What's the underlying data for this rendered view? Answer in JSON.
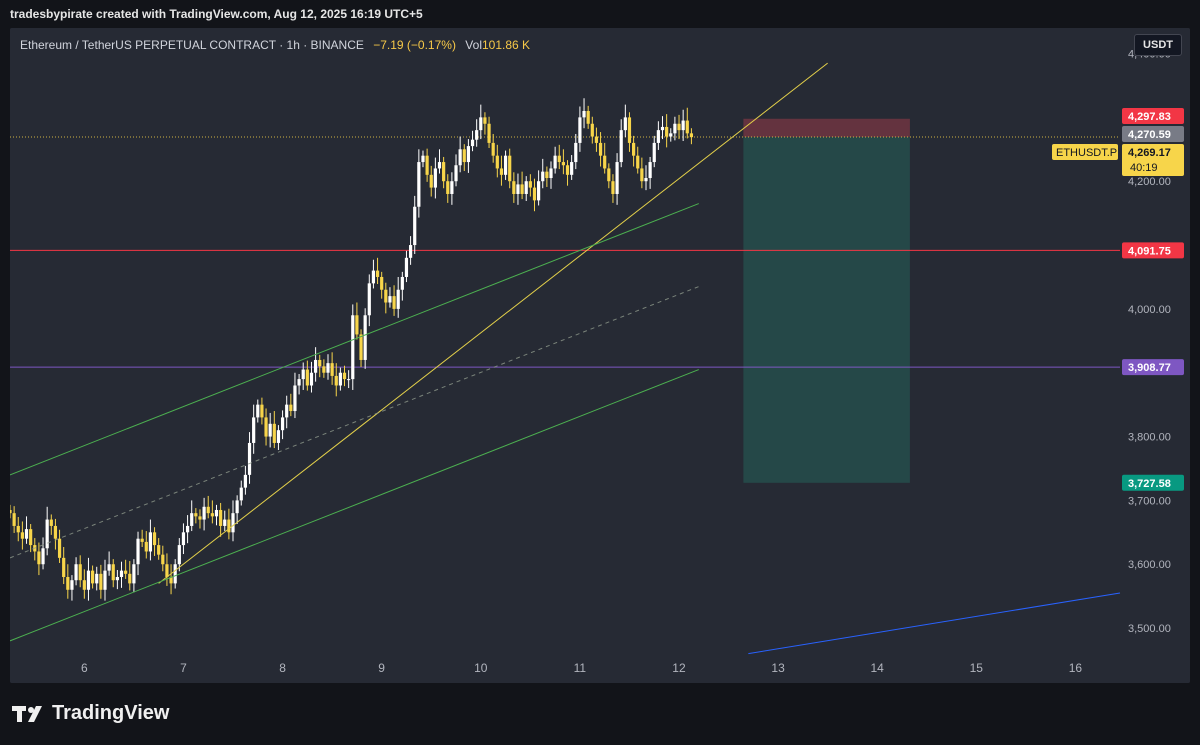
{
  "header": {
    "caption": "tradesbypirate created with TradingView.com, Aug 12, 2025 16:19 UTC+5"
  },
  "legend": {
    "symbol": "Ethereum / TetherUS PERPETUAL CONTRACT · 1h · BINANCE",
    "change": "−7.19 (−0.17%)",
    "volume_label": "Vol",
    "volume_value": "101.86 K"
  },
  "currency_button": "USDT",
  "brand": {
    "name": "TradingView"
  },
  "colors": {
    "background": "#262a34",
    "candle_up": "#ffffff",
    "candle_down": "#f7d54a",
    "trendline": "#e3d04a",
    "channel": "#4caf50",
    "resistance": "#f23645",
    "support": "#7e57c2",
    "blue_line": "#2962ff",
    "stop_zone": "#6b3440",
    "target_zone": "#264b4a"
  },
  "chart_data": {
    "type": "candlestick",
    "symbol_tag": "ETHUSDT.P",
    "countdown": "40:19",
    "ylim": [
      3450,
      4440
    ],
    "xlim": [
      5.25,
      16.45
    ],
    "y_ticks": [
      {
        "value": 3500,
        "label": "3,500.00"
      },
      {
        "value": 3600,
        "label": "3,600.00"
      },
      {
        "value": 3700,
        "label": "3,700.00"
      },
      {
        "value": 3800,
        "label": "3,800.00"
      },
      {
        "value": 4000,
        "label": "4,000.00"
      },
      {
        "value": 4200,
        "label": "4,200.00"
      },
      {
        "value": 4400,
        "label": "4,400.00"
      }
    ],
    "x_ticks": [
      {
        "value": 6,
        "label": "6"
      },
      {
        "value": 7,
        "label": "7"
      },
      {
        "value": 8,
        "label": "8"
      },
      {
        "value": 9,
        "label": "9"
      },
      {
        "value": 10,
        "label": "10"
      },
      {
        "value": 11,
        "label": "11"
      },
      {
        "value": 12,
        "label": "12"
      },
      {
        "value": 13,
        "label": "13"
      },
      {
        "value": 14,
        "label": "14"
      },
      {
        "value": 15,
        "label": "15"
      },
      {
        "value": 16,
        "label": "16"
      }
    ],
    "price_labels": [
      {
        "value": 4297.83,
        "label": "4,297.83",
        "color": "#f23645"
      },
      {
        "value": 4270.59,
        "label": "4,270.59",
        "color": "#787b86"
      },
      {
        "value": 4269.17,
        "label": "4,269.17",
        "color": "#f7d54a"
      },
      {
        "value": 4091.75,
        "label": "4,091.75",
        "color": "#f23645"
      },
      {
        "value": 3908.77,
        "label": "3,908.77",
        "color": "#7e57c2"
      },
      {
        "value": 3727.58,
        "label": "3,727.58",
        "color": "#089981"
      }
    ],
    "current_price": 4269.17,
    "horizontal_lines": [
      {
        "name": "resistance",
        "y": 4091.75
      },
      {
        "name": "support",
        "y": 3908.77
      }
    ],
    "position": {
      "x_start": 12.65,
      "x_end": 14.33,
      "entry": 4269.17,
      "stop": 4297.83,
      "target": 3727.58
    },
    "closes": [
      3680,
      3660,
      3650,
      3640,
      3655,
      3630,
      3620,
      3600,
      3625,
      3670,
      3660,
      3640,
      3610,
      3580,
      3560,
      3575,
      3600,
      3575,
      3560,
      3590,
      3570,
      3585,
      3560,
      3590,
      3600,
      3575,
      3580,
      3590,
      3585,
      3570,
      3600,
      3640,
      3635,
      3620,
      3650,
      3630,
      3615,
      3600,
      3580,
      3570,
      3600,
      3630,
      3650,
      3660,
      3680,
      3675,
      3670,
      3690,
      3680,
      3675,
      3685,
      3660,
      3670,
      3650,
      3680,
      3700,
      3720,
      3740,
      3790,
      3830,
      3850,
      3830,
      3800,
      3820,
      3790,
      3810,
      3830,
      3850,
      3840,
      3880,
      3890,
      3905,
      3880,
      3900,
      3920,
      3910,
      3900,
      3915,
      3895,
      3880,
      3900,
      3890,
      3890,
      3990,
      3960,
      3920,
      3990,
      4040,
      4060,
      4050,
      4030,
      4010,
      4020,
      4000,
      4030,
      4050,
      4080,
      4100,
      4160,
      4230,
      4240,
      4210,
      4190,
      4220,
      4230,
      4200,
      4180,
      4200,
      4225,
      4250,
      4230,
      4255,
      4265,
      4280,
      4300,
      4290,
      4260,
      4240,
      4220,
      4210,
      4240,
      4200,
      4180,
      4195,
      4180,
      4200,
      4190,
      4170,
      4200,
      4215,
      4205,
      4220,
      4240,
      4230,
      4225,
      4210,
      4230,
      4260,
      4300,
      4310,
      4290,
      4270,
      4260,
      4240,
      4220,
      4200,
      4180,
      4230,
      4280,
      4300,
      4260,
      4240,
      4220,
      4200,
      4205,
      4230,
      4260,
      4280,
      4285,
      4270,
      4275,
      4290,
      4280,
      4295,
      4275,
      4269
    ],
    "x_first": 5.25,
    "x_step": 0.04167,
    "lines": [
      {
        "name": "ascending-trendline",
        "x1": 6.75,
        "y1": 3570,
        "x2": 13.5,
        "y2": 4385
      },
      {
        "name": "channel-upper",
        "x1": 5.25,
        "y1": 3740,
        "x2": 12.2,
        "y2": 4165
      },
      {
        "name": "channel-lower",
        "x1": 5.25,
        "y1": 3480,
        "x2": 12.2,
        "y2": 3905
      },
      {
        "name": "channel-mid",
        "x1": 5.25,
        "y1": 3610,
        "x2": 12.2,
        "y2": 4035,
        "dashed": true
      },
      {
        "name": "blue-line",
        "x1": 12.7,
        "y1": 3460,
        "x2": 16.45,
        "y2": 3555
      }
    ]
  }
}
